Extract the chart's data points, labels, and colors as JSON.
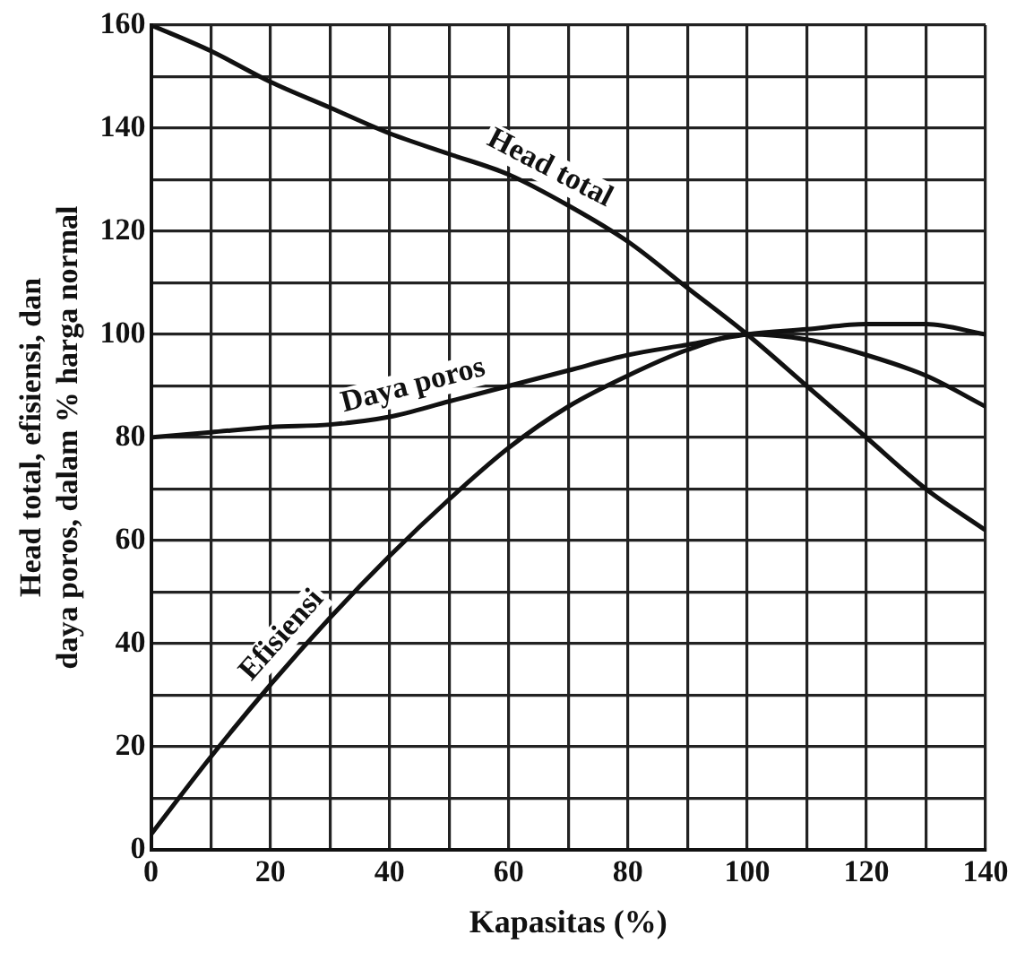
{
  "chart_data": {
    "type": "line",
    "xlabel": "Kapasitas (%)",
    "ylabel": "Head total, efisiensi, dan daya poros, dalam % harga normal",
    "x": [
      0,
      10,
      20,
      30,
      40,
      50,
      60,
      70,
      80,
      90,
      100,
      110,
      120,
      130,
      140
    ],
    "series": [
      {
        "name": "Head total",
        "color": "#111111",
        "values": [
          160,
          155,
          149,
          144,
          139,
          135,
          131,
          125,
          118,
          109,
          100,
          90,
          80,
          70,
          62
        ]
      },
      {
        "name": "Daya poros",
        "color": "#111111",
        "values": [
          80,
          81,
          82,
          82.5,
          84,
          87,
          90,
          93,
          96,
          98,
          100,
          101,
          102,
          102,
          100
        ]
      },
      {
        "name": "Efisiensi",
        "color": "#111111",
        "values": [
          3,
          18,
          32,
          45,
          57,
          68,
          78,
          86,
          92,
          97,
          100,
          99,
          96,
          92,
          86
        ]
      }
    ],
    "xlim": [
      0,
      140
    ],
    "ylim": [
      0,
      160
    ],
    "xticks": [
      0,
      {
        "value": 10,
        "label": null
      },
      20,
      {
        "value": 30,
        "label": null
      },
      40,
      {
        "value": 50,
        "label": null
      },
      60,
      {
        "value": 70,
        "label": null
      },
      80,
      {
        "value": 90,
        "label": null
      },
      100,
      {
        "value": 110,
        "label": null
      },
      120,
      {
        "value": 130,
        "label": null
      },
      140
    ],
    "yticks": [
      0,
      {
        "value": 10,
        "label": null
      },
      20,
      {
        "value": 30,
        "label": null
      },
      40,
      {
        "value": 50,
        "label": null
      },
      60,
      {
        "value": 70,
        "label": null
      },
      80,
      {
        "value": 90,
        "label": null
      },
      100,
      {
        "value": 110,
        "label": null
      },
      120,
      {
        "value": 130,
        "label": null
      },
      140,
      {
        "value": 150,
        "label": null
      },
      160
    ],
    "grid": true,
    "legend": false,
    "marker": "none",
    "line_style": "solid"
  }
}
